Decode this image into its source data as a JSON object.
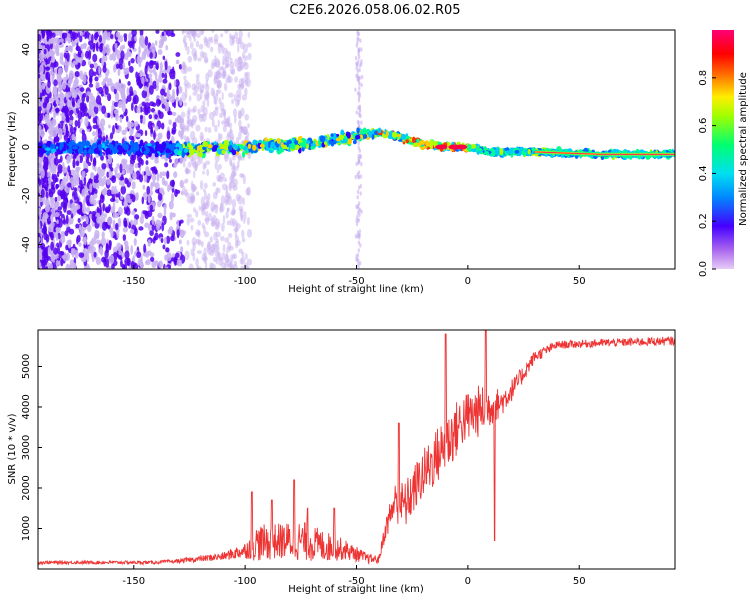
{
  "title": "C2E6.2026.058.06.02.R05",
  "colors": {
    "snr_line": "#ee3333",
    "spectrum_scatter": "#5500ee",
    "spectrum_faint": "#c8b0f0",
    "axis": "#000000",
    "background": "#ffffff"
  },
  "chart_data": [
    {
      "type": "heatmap",
      "name": "spectrogram",
      "xlabel": "Height of straight line (km)",
      "ylabel": "Frequency (Hz)",
      "xlim": [
        -193,
        93
      ],
      "ylim": [
        -50,
        48
      ],
      "xticks": [
        -150,
        -100,
        -50,
        0,
        50
      ],
      "yticks": [
        -40,
        -20,
        0,
        20,
        40
      ],
      "colorbar": {
        "label": "Normalized spectral amplitude",
        "range": [
          0,
          1
        ],
        "ticks": [
          0.0,
          0.2,
          0.4,
          0.6,
          0.8
        ],
        "tick_labels": [
          "0.0",
          "0.2",
          "0.4",
          "0.6",
          "0.8"
        ],
        "colormap": "rainbow (violet-blue-cyan-green-yellow-red-magenta)"
      },
      "signal_track": [
        {
          "x": -193,
          "y": 0
        },
        {
          "x": -130,
          "y": -1
        },
        {
          "x": -100,
          "y": 0
        },
        {
          "x": -80,
          "y": 1
        },
        {
          "x": -60,
          "y": 3
        },
        {
          "x": -45,
          "y": 5
        },
        {
          "x": -40,
          "y": 6
        },
        {
          "x": -30,
          "y": 4
        },
        {
          "x": -20,
          "y": 1
        },
        {
          "x": -10,
          "y": 0
        },
        {
          "x": 0,
          "y": 0
        },
        {
          "x": 10,
          "y": -2
        },
        {
          "x": 30,
          "y": -2
        },
        {
          "x": 60,
          "y": -3
        },
        {
          "x": 93,
          "y": -3
        }
      ]
    },
    {
      "type": "line",
      "name": "snr",
      "xlabel": "Height of straight line (km)",
      "ylabel": "SNR (10 * v/v)",
      "xlim": [
        -193,
        93
      ],
      "ylim": [
        0,
        5900
      ],
      "xticks": [
        -150,
        -100,
        -50,
        0,
        50
      ],
      "yticks": [
        1000,
        2000,
        3000,
        4000,
        5000
      ],
      "envelope": [
        {
          "x": -193,
          "base": 150,
          "noise": 80
        },
        {
          "x": -140,
          "base": 150,
          "noise": 80
        },
        {
          "x": -130,
          "base": 180,
          "noise": 100
        },
        {
          "x": -110,
          "base": 280,
          "noise": 200
        },
        {
          "x": -100,
          "base": 400,
          "noise": 400
        },
        {
          "x": -95,
          "base": 500,
          "noise": 900
        },
        {
          "x": -85,
          "base": 550,
          "noise": 900
        },
        {
          "x": -75,
          "base": 550,
          "noise": 1000
        },
        {
          "x": -65,
          "base": 450,
          "noise": 800
        },
        {
          "x": -55,
          "base": 400,
          "noise": 500
        },
        {
          "x": -45,
          "base": 220,
          "noise": 250
        },
        {
          "x": -40,
          "base": 200,
          "noise": 200
        },
        {
          "x": -37,
          "base": 900,
          "noise": 500
        },
        {
          "x": -33,
          "base": 1500,
          "noise": 1000
        },
        {
          "x": -28,
          "base": 1400,
          "noise": 1200
        },
        {
          "x": -22,
          "base": 2000,
          "noise": 1200
        },
        {
          "x": -15,
          "base": 2500,
          "noise": 1400
        },
        {
          "x": -8,
          "base": 3000,
          "noise": 1500
        },
        {
          "x": -2,
          "base": 3500,
          "noise": 1300
        },
        {
          "x": 5,
          "base": 3700,
          "noise": 1300
        },
        {
          "x": 15,
          "base": 4000,
          "noise": 700
        },
        {
          "x": 22,
          "base": 4500,
          "noise": 500
        },
        {
          "x": 30,
          "base": 5200,
          "noise": 300
        },
        {
          "x": 40,
          "base": 5500,
          "noise": 200
        },
        {
          "x": 60,
          "base": 5550,
          "noise": 200
        },
        {
          "x": 93,
          "base": 5600,
          "noise": 220
        }
      ],
      "spikes": [
        {
          "x": -97,
          "y": 1900
        },
        {
          "x": -88,
          "y": 1700
        },
        {
          "x": -78,
          "y": 2200
        },
        {
          "x": -72,
          "y": 1500
        },
        {
          "x": -60,
          "y": 1500
        },
        {
          "x": -31,
          "y": 3600
        },
        {
          "x": -10,
          "y": 5800
        },
        {
          "x": 8,
          "y": 5900
        },
        {
          "x": 12,
          "y": 700
        }
      ]
    }
  ]
}
